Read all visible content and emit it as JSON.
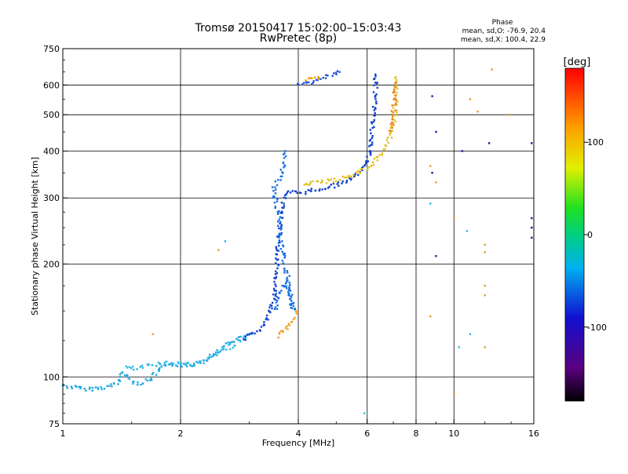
{
  "header": {
    "title": "Tromsø 20150417 15:02:00–15:03:43",
    "subtitle": "RwPretec (8p)",
    "phase_label": "Phase",
    "phase_o": "mean, sd,O: -76.9, 20.4",
    "phase_x": "mean, sd,X: 100.4, 22.9"
  },
  "chart_data": {
    "type": "scatter",
    "xlabel": "Frequency [MHz]",
    "ylabel": "Stationary phase Virtual Height [km]",
    "x_scale": "log",
    "y_scale": "log",
    "xlim": [
      1,
      16
    ],
    "ylim": [
      75,
      750
    ],
    "x_ticks": [
      {
        "value": 1,
        "label": "1"
      },
      {
        "value": 2,
        "label": "2"
      },
      {
        "value": 4,
        "label": "4"
      },
      {
        "value": 6,
        "label": "6"
      },
      {
        "value": 8,
        "label": "8"
      },
      {
        "value": 10,
        "label": "10"
      },
      {
        "value": 16,
        "label": "16"
      }
    ],
    "y_ticks": [
      {
        "value": 75,
        "label": "75"
      },
      {
        "value": 100,
        "label": "100"
      },
      {
        "value": 200,
        "label": "200"
      },
      {
        "value": 300,
        "label": "300"
      },
      {
        "value": 400,
        "label": "400"
      },
      {
        "value": 500,
        "label": "500"
      },
      {
        "value": 600,
        "label": "600"
      },
      {
        "value": 750,
        "label": "750"
      }
    ],
    "grid": true,
    "colorbar": {
      "label": "[deg]",
      "range": [
        -180,
        180
      ],
      "ticks": [
        {
          "value": 100,
          "label": "100"
        },
        {
          "value": 0,
          "label": "0"
        },
        {
          "value": -100,
          "label": "-100"
        }
      ]
    },
    "traces": [
      {
        "color": "#20a8e0",
        "points": [
          [
            1.0,
            95
          ],
          [
            1.05,
            94
          ],
          [
            1.12,
            93
          ],
          [
            1.2,
            93
          ],
          [
            1.3,
            94
          ],
          [
            1.38,
            96
          ],
          [
            1.42,
            103
          ],
          [
            1.46,
            100
          ],
          [
            1.52,
            97
          ],
          [
            1.6,
            96
          ],
          [
            1.68,
            99
          ],
          [
            1.8,
            106
          ],
          [
            1.95,
            108
          ],
          [
            2.1,
            107
          ],
          [
            2.25,
            110
          ],
          [
            2.4,
            114
          ],
          [
            2.55,
            119
          ],
          [
            2.7,
            124
          ],
          [
            2.85,
            128
          ]
        ]
      },
      {
        "color": "#30b8e8",
        "points": [
          [
            1.45,
            106
          ],
          [
            1.55,
            105
          ],
          [
            1.65,
            107
          ],
          [
            1.72,
            108
          ],
          [
            1.85,
            109
          ],
          [
            2.0,
            109
          ],
          [
            2.15,
            108
          ],
          [
            2.3,
            110
          ],
          [
            2.45,
            114
          ],
          [
            2.6,
            118
          ],
          [
            2.8,
            124
          ],
          [
            2.95,
            128
          ],
          [
            3.05,
            130
          ]
        ]
      },
      {
        "color": "#1040d0",
        "points": [
          [
            2.9,
            126
          ],
          [
            3.05,
            130
          ],
          [
            3.2,
            134
          ],
          [
            3.3,
            140
          ],
          [
            3.4,
            150
          ],
          [
            3.45,
            160
          ],
          [
            3.5,
            175
          ],
          [
            3.52,
            190
          ],
          [
            3.55,
            210
          ],
          [
            3.55,
            230
          ],
          [
            3.6,
            250
          ],
          [
            3.62,
            275
          ],
          [
            3.68,
            300
          ],
          [
            3.8,
            310
          ],
          [
            4.1,
            310
          ],
          [
            4.6,
            318
          ],
          [
            5.0,
            325
          ],
          [
            5.5,
            338
          ],
          [
            5.9,
            360
          ],
          [
            6.1,
            395
          ],
          [
            6.2,
            470
          ],
          [
            6.3,
            560
          ],
          [
            6.3,
            640
          ]
        ]
      },
      {
        "color": "#1570e0",
        "points": [
          [
            3.5,
            150
          ],
          [
            3.6,
            170
          ],
          [
            3.72,
            180
          ],
          [
            3.82,
            160
          ],
          [
            3.9,
            150
          ],
          [
            3.6,
            230
          ],
          [
            3.58,
            260
          ],
          [
            3.45,
            320
          ],
          [
            3.6,
            340
          ],
          [
            3.65,
            360
          ],
          [
            3.68,
            380
          ],
          [
            3.7,
            400
          ]
        ]
      },
      {
        "color": "#f0a020",
        "points": [
          [
            3.55,
            128
          ],
          [
            3.65,
            132
          ],
          [
            3.75,
            134
          ],
          [
            3.85,
            140
          ],
          [
            3.95,
            150
          ]
        ]
      },
      {
        "color": "#e0c020",
        "points": [
          [
            4.1,
            325
          ],
          [
            4.5,
            330
          ],
          [
            5.0,
            335
          ],
          [
            5.5,
            345
          ],
          [
            6.0,
            360
          ],
          [
            6.5,
            390
          ],
          [
            6.8,
            420
          ],
          [
            7.0,
            470
          ],
          [
            7.1,
            540
          ],
          [
            7.1,
            630
          ]
        ]
      },
      {
        "color": "#f08020",
        "points": [
          [
            6.9,
            450
          ],
          [
            7.0,
            500
          ],
          [
            7.05,
            560
          ],
          [
            7.1,
            610
          ]
        ]
      },
      {
        "color": "#2050e0",
        "points": [
          [
            4.0,
            600
          ],
          [
            4.3,
            610
          ],
          [
            4.6,
            625
          ],
          [
            4.9,
            640
          ],
          [
            5.1,
            650
          ]
        ]
      },
      {
        "color": "#f0a000",
        "points": [
          [
            4.2,
            618
          ],
          [
            4.5,
            630
          ]
        ]
      },
      {
        "color": "#1020a0",
        "points": [
          [
            8.8,
            560
          ],
          [
            9.0,
            450
          ],
          [
            8.8,
            350
          ],
          [
            9.0,
            210
          ],
          [
            10.5,
            400
          ],
          [
            12.3,
            420
          ],
          [
            15.8,
            420
          ],
          [
            15.8,
            265
          ],
          [
            15.8,
            250
          ],
          [
            15.8,
            235
          ]
        ]
      },
      {
        "color": "#e0a020",
        "points": [
          [
            8.7,
            365
          ],
          [
            9.0,
            330
          ],
          [
            10.0,
            265
          ],
          [
            11.0,
            550
          ],
          [
            11.5,
            510
          ],
          [
            12.5,
            660
          ],
          [
            13.8,
            500
          ],
          [
            12.0,
            225
          ],
          [
            12.0,
            215
          ],
          [
            12.0,
            175
          ],
          [
            12.0,
            165
          ],
          [
            12.0,
            120
          ],
          [
            10.0,
            90
          ],
          [
            8.7,
            145
          ],
          [
            1.7,
            130
          ],
          [
            2.5,
            218
          ]
        ]
      },
      {
        "color": "#20c0e0",
        "points": [
          [
            8.7,
            290
          ],
          [
            10.3,
            120
          ],
          [
            10.8,
            245
          ],
          [
            11.0,
            130
          ],
          [
            2.6,
            230
          ],
          [
            5.9,
            80
          ]
        ]
      }
    ]
  }
}
